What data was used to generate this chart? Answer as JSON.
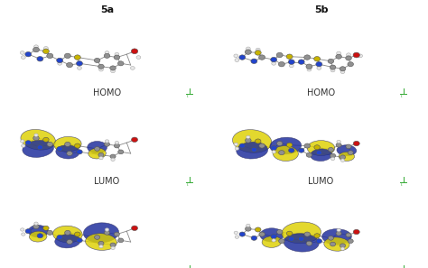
{
  "title_5a": "5a",
  "title_5b": "5b",
  "label_homo": "HOMO",
  "label_lumo": "LUMO",
  "background_color": "#ffffff",
  "text_color": "#333333",
  "title_fontsize": 8,
  "label_fontsize": 7,
  "figure_width": 4.74,
  "figure_height": 2.97,
  "dpi": 100,
  "atom_gray": "#909090",
  "atom_dark_gray": "#555555",
  "atom_yellow": "#c8b400",
  "atom_blue": "#2244cc",
  "atom_blue_dark": "#1a1a88",
  "atom_red": "#cc1111",
  "atom_white": "#e8e8e8",
  "atom_white_edge": "#aaaaaa",
  "scale_bar_color": "#33aa33",
  "panel_bg": "#ffffff",
  "lobe_yellow": "#ddd000",
  "lobe_blue": "#1a2a9a",
  "lobe_alpha": 0.82,
  "lobe_edge_color": "#333366",
  "lobe_lw": 0.4
}
